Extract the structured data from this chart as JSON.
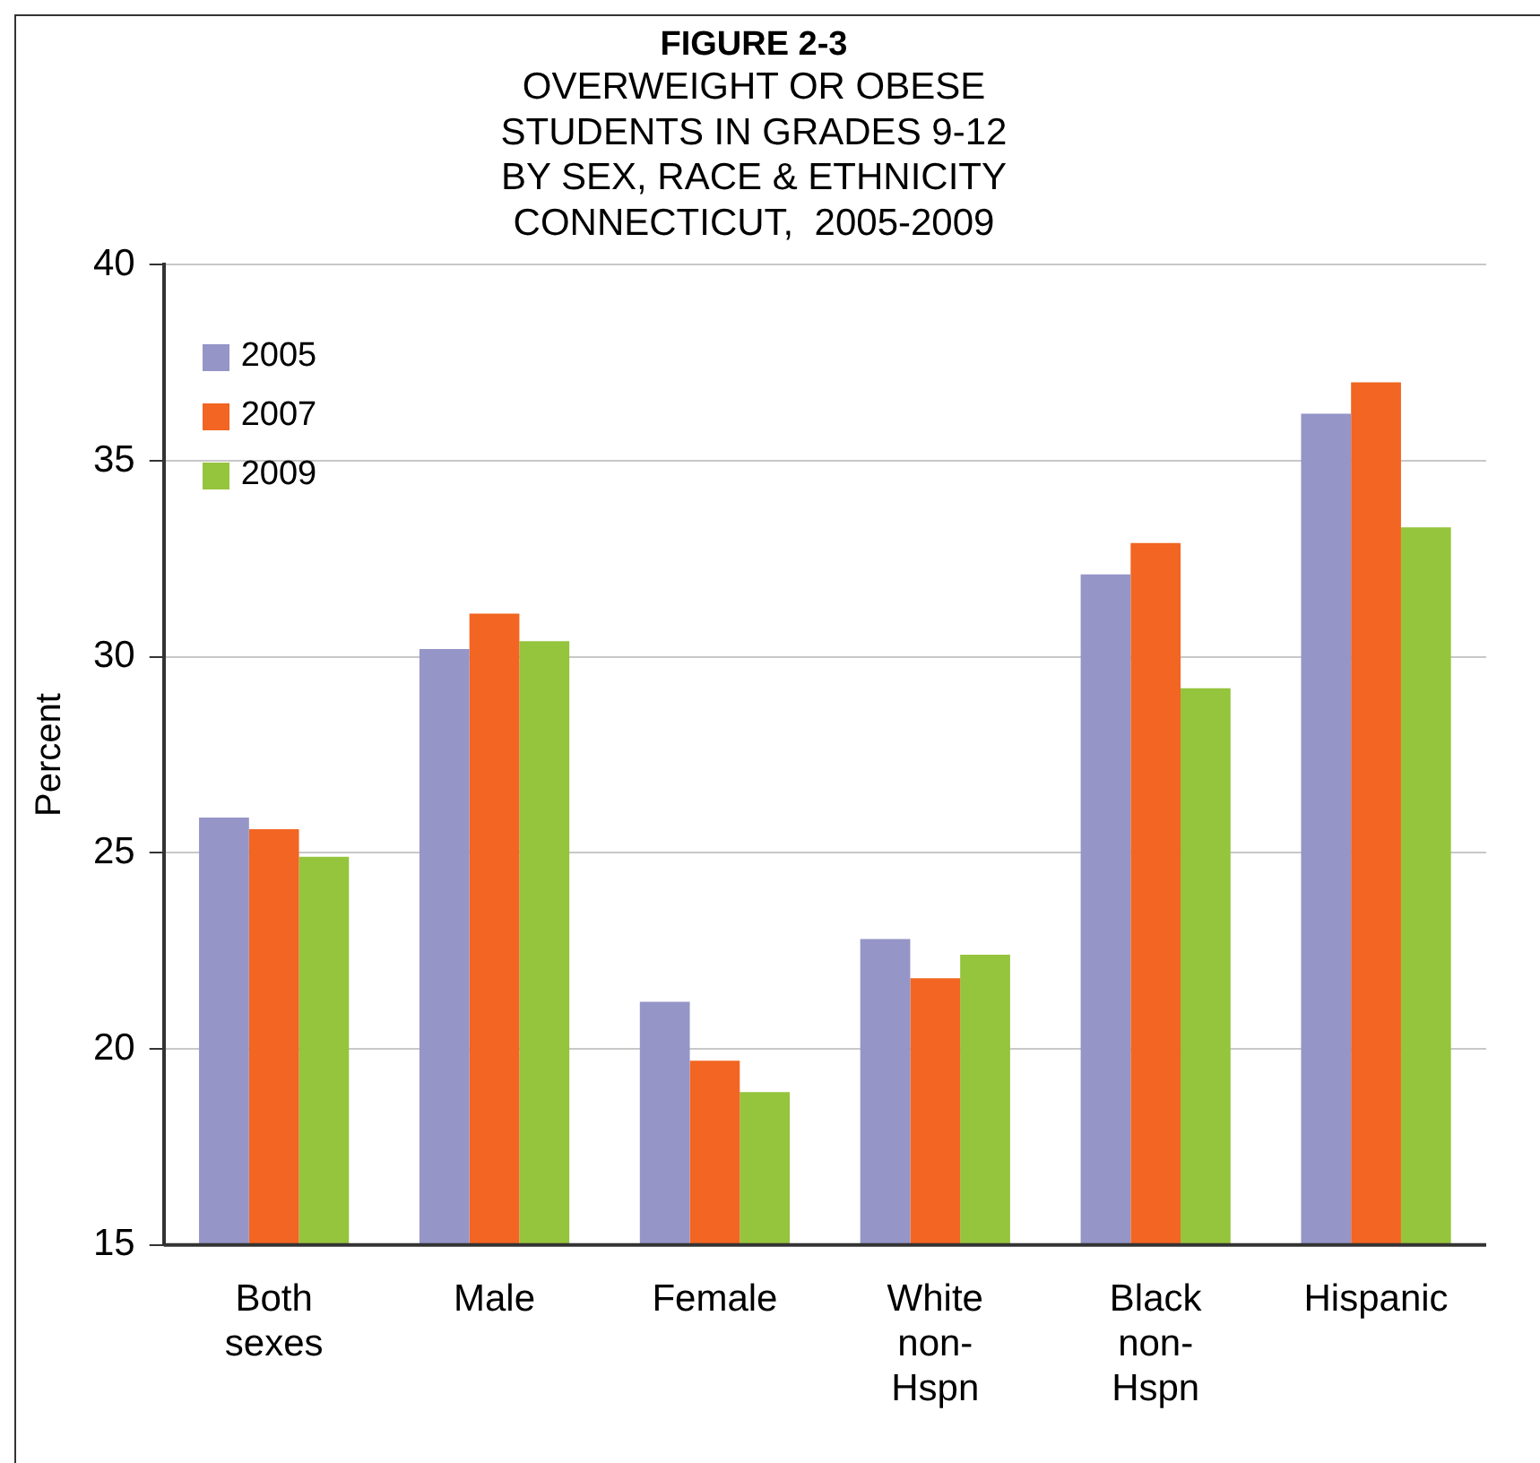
{
  "chart_data": {
    "type": "bar",
    "title": "FIGURE 2-3",
    "subtitle": "OVERWEIGHT OR OBESE\nSTUDENTS IN GRADES 9-12\nBY SEX, RACE & ETHNICITY\nCONNECTICUT,  2005-2009",
    "ylabel": "Percent",
    "categories": [
      "Both\nsexes",
      "Male",
      "Female",
      "White\nnon-\nHspn",
      "Black\nnon-\nHspn",
      "Hispanic"
    ],
    "series": [
      {
        "name": "2005",
        "color": "#9595c7",
        "values": [
          25.9,
          30.2,
          21.2,
          22.8,
          32.1,
          36.2
        ]
      },
      {
        "name": "2007",
        "color": "#f26522",
        "values": [
          25.6,
          31.1,
          19.7,
          21.8,
          32.9,
          37.0
        ]
      },
      {
        "name": "2009",
        "color": "#95c43d",
        "values": [
          24.9,
          30.4,
          18.9,
          22.4,
          29.2,
          33.3
        ]
      }
    ],
    "ylim": [
      15,
      40
    ],
    "yticks": [
      15,
      20,
      25,
      30,
      35,
      40
    ],
    "grid": "y",
    "legend": "top left"
  }
}
